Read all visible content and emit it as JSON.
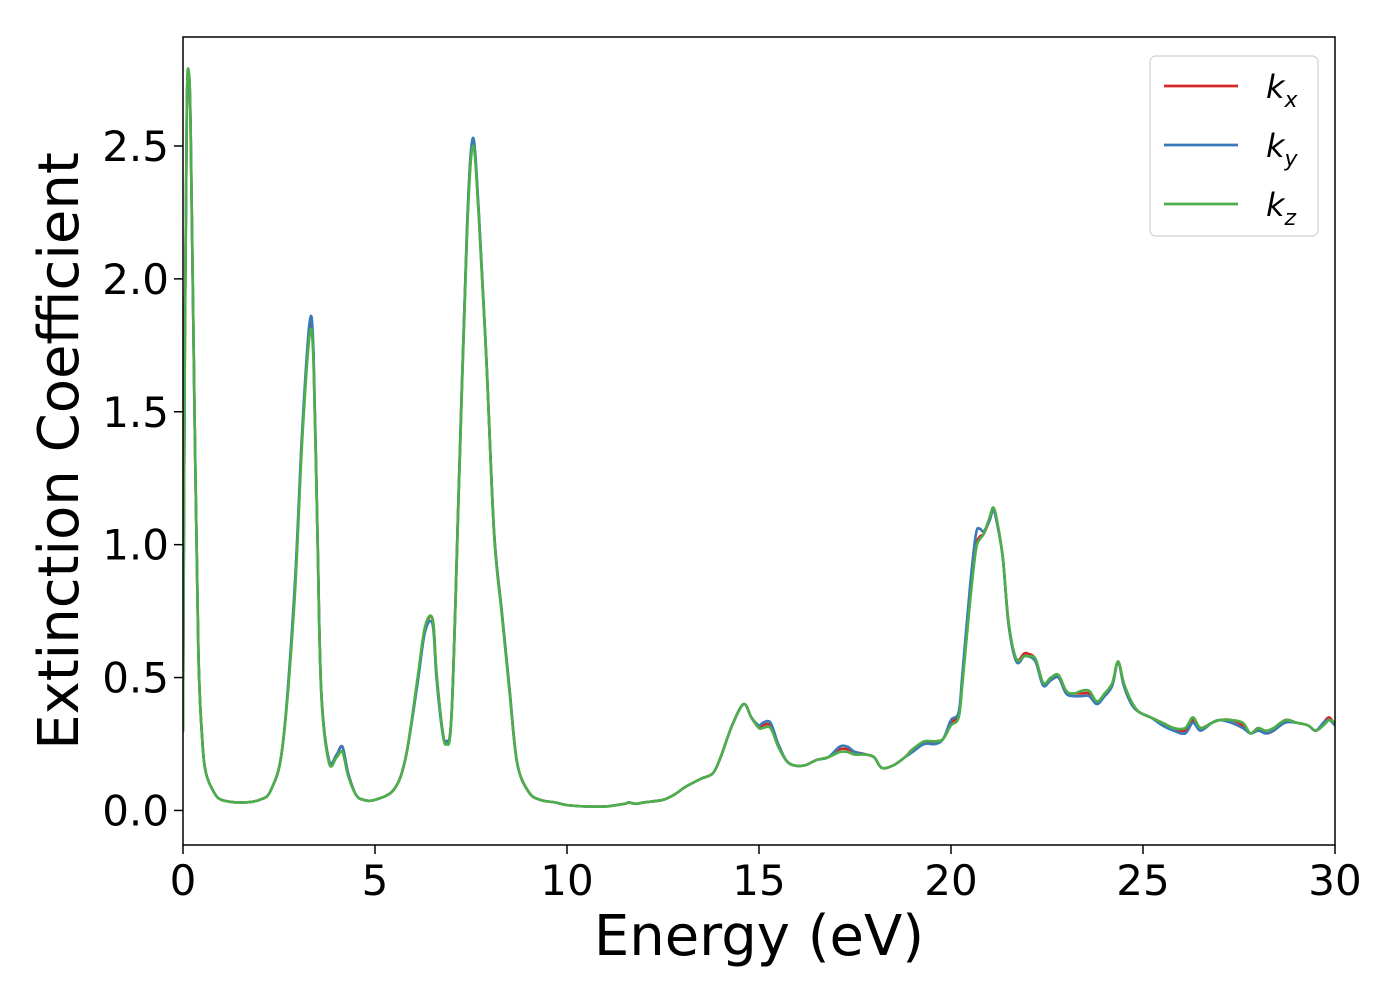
{
  "chart_data": {
    "type": "line",
    "title": "",
    "xlabel": "Energy (eV)",
    "ylabel": "Extinction Coefficient",
    "xlim": [
      0,
      30
    ],
    "ylim": [
      -0.13,
      2.91
    ],
    "xticks": [
      0,
      5,
      10,
      15,
      20,
      25,
      30
    ],
    "xtick_labels": [
      "0",
      "5",
      "10",
      "15",
      "20",
      "25",
      "30"
    ],
    "yticks": [
      0.0,
      0.5,
      1.0,
      1.5,
      2.0,
      2.5
    ],
    "ytick_labels": [
      "0.0",
      "0.5",
      "1.0",
      "1.5",
      "2.0",
      "2.5"
    ],
    "grid": false,
    "legend_position": "top-right",
    "series": [
      {
        "name": "k_x",
        "legend_base": "k",
        "legend_sub": "x",
        "color": "#d62728",
        "x": [
          0,
          0.05,
          0.1,
          0.15,
          0.2,
          0.3,
          0.4,
          0.5,
          0.6,
          0.8,
          1.0,
          1.5,
          2.0,
          2.3,
          2.6,
          2.9,
          3.1,
          3.3,
          3.4,
          3.5,
          3.6,
          3.8,
          4.0,
          4.15,
          4.3,
          4.5,
          4.7,
          5.0,
          5.5,
          5.8,
          6.1,
          6.3,
          6.5,
          6.6,
          6.75,
          6.85,
          7.0,
          7.2,
          7.4,
          7.55,
          7.7,
          7.9,
          8.1,
          8.3,
          8.5,
          8.7,
          9.0,
          9.3,
          9.7,
          10.0,
          10.5,
          11.0,
          11.5,
          11.6,
          11.8,
          12.0,
          12.5,
          12.8,
          13.1,
          13.5,
          13.8,
          14.0,
          14.3,
          14.6,
          14.8,
          15.0,
          15.1,
          15.3,
          15.5,
          15.7,
          15.9,
          16.2,
          16.5,
          16.8,
          17.1,
          17.3,
          17.5,
          17.8,
          18.0,
          18.2,
          18.5,
          18.8,
          19.0,
          19.3,
          19.6,
          19.8,
          20.0,
          20.2,
          20.3,
          20.5,
          20.65,
          20.75,
          20.85,
          21.0,
          21.1,
          21.2,
          21.35,
          21.5,
          21.7,
          21.9,
          22.0,
          22.2,
          22.4,
          22.6,
          22.8,
          23.0,
          23.2,
          23.4,
          23.6,
          23.8,
          24.0,
          24.2,
          24.35,
          24.5,
          24.7,
          24.9,
          25.2,
          25.5,
          25.8,
          26.1,
          26.3,
          26.5,
          26.8,
          27.0,
          27.3,
          27.6,
          27.8,
          28.0,
          28.2,
          28.4,
          28.7,
          29.0,
          29.3,
          29.5,
          29.7,
          29.85,
          30.0
        ],
        "values": [
          0.3,
          1.8,
          2.65,
          2.77,
          2.55,
          1.5,
          0.6,
          0.27,
          0.14,
          0.07,
          0.04,
          0.03,
          0.04,
          0.08,
          0.25,
          0.8,
          1.4,
          1.82,
          1.7,
          1.05,
          0.45,
          0.19,
          0.21,
          0.24,
          0.14,
          0.06,
          0.04,
          0.04,
          0.08,
          0.2,
          0.48,
          0.68,
          0.72,
          0.52,
          0.31,
          0.26,
          0.38,
          1.3,
          2.2,
          2.52,
          2.25,
          1.7,
          1.05,
          0.75,
          0.46,
          0.18,
          0.07,
          0.04,
          0.03,
          0.02,
          0.015,
          0.015,
          0.025,
          0.03,
          0.025,
          0.03,
          0.04,
          0.06,
          0.09,
          0.12,
          0.14,
          0.2,
          0.32,
          0.4,
          0.35,
          0.31,
          0.32,
          0.32,
          0.25,
          0.19,
          0.17,
          0.17,
          0.19,
          0.2,
          0.23,
          0.23,
          0.22,
          0.21,
          0.2,
          0.16,
          0.17,
          0.2,
          0.23,
          0.25,
          0.26,
          0.27,
          0.33,
          0.36,
          0.5,
          0.8,
          0.99,
          1.03,
          1.04,
          1.09,
          1.13,
          1.08,
          0.95,
          0.7,
          0.57,
          0.59,
          0.59,
          0.57,
          0.48,
          0.49,
          0.5,
          0.44,
          0.44,
          0.44,
          0.44,
          0.41,
          0.43,
          0.47,
          0.56,
          0.47,
          0.4,
          0.37,
          0.35,
          0.33,
          0.31,
          0.3,
          0.34,
          0.31,
          0.33,
          0.34,
          0.34,
          0.32,
          0.29,
          0.31,
          0.29,
          0.3,
          0.34,
          0.33,
          0.32,
          0.3,
          0.33,
          0.35,
          0.32
        ]
      },
      {
        "name": "k_y",
        "legend_base": "k",
        "legend_sub": "y",
        "color": "#3a7ab8",
        "x": [
          0,
          0.05,
          0.1,
          0.15,
          0.2,
          0.3,
          0.4,
          0.5,
          0.6,
          0.8,
          1.0,
          1.5,
          2.0,
          2.3,
          2.6,
          2.9,
          3.1,
          3.3,
          3.4,
          3.5,
          3.6,
          3.8,
          4.0,
          4.15,
          4.3,
          4.5,
          4.7,
          5.0,
          5.5,
          5.8,
          6.1,
          6.3,
          6.5,
          6.6,
          6.75,
          6.85,
          7.0,
          7.2,
          7.4,
          7.55,
          7.7,
          7.9,
          8.1,
          8.3,
          8.5,
          8.7,
          9.0,
          9.3,
          9.7,
          10.0,
          10.5,
          11.0,
          11.5,
          11.6,
          11.8,
          12.0,
          12.5,
          12.8,
          13.1,
          13.5,
          13.8,
          14.0,
          14.3,
          14.6,
          14.8,
          15.0,
          15.1,
          15.3,
          15.5,
          15.7,
          15.9,
          16.2,
          16.5,
          16.8,
          17.1,
          17.3,
          17.5,
          17.8,
          18.0,
          18.2,
          18.5,
          18.8,
          19.0,
          19.3,
          19.6,
          19.8,
          20.0,
          20.2,
          20.3,
          20.5,
          20.65,
          20.75,
          20.85,
          21.0,
          21.1,
          21.2,
          21.35,
          21.5,
          21.7,
          21.9,
          22.0,
          22.2,
          22.4,
          22.6,
          22.8,
          23.0,
          23.2,
          23.4,
          23.6,
          23.8,
          24.0,
          24.2,
          24.35,
          24.5,
          24.7,
          24.9,
          25.2,
          25.5,
          25.8,
          26.1,
          26.3,
          26.5,
          26.8,
          27.0,
          27.3,
          27.6,
          27.8,
          28.0,
          28.2,
          28.4,
          28.7,
          29.0,
          29.3,
          29.5,
          29.7,
          29.85,
          30.0
        ],
        "values": [
          0.3,
          1.8,
          2.65,
          2.77,
          2.55,
          1.5,
          0.6,
          0.27,
          0.14,
          0.07,
          0.04,
          0.03,
          0.04,
          0.08,
          0.25,
          0.82,
          1.42,
          1.84,
          1.72,
          1.06,
          0.45,
          0.19,
          0.21,
          0.24,
          0.14,
          0.06,
          0.04,
          0.04,
          0.08,
          0.2,
          0.47,
          0.67,
          0.7,
          0.5,
          0.3,
          0.26,
          0.38,
          1.3,
          2.21,
          2.53,
          2.26,
          1.7,
          1.05,
          0.75,
          0.46,
          0.18,
          0.07,
          0.04,
          0.03,
          0.02,
          0.015,
          0.015,
          0.025,
          0.03,
          0.025,
          0.03,
          0.04,
          0.06,
          0.09,
          0.12,
          0.14,
          0.2,
          0.32,
          0.4,
          0.35,
          0.32,
          0.33,
          0.33,
          0.25,
          0.19,
          0.17,
          0.17,
          0.19,
          0.2,
          0.24,
          0.24,
          0.22,
          0.21,
          0.2,
          0.16,
          0.17,
          0.2,
          0.22,
          0.25,
          0.25,
          0.27,
          0.34,
          0.37,
          0.52,
          0.85,
          1.04,
          1.06,
          1.05,
          1.09,
          1.13,
          1.08,
          0.95,
          0.7,
          0.56,
          0.58,
          0.58,
          0.56,
          0.47,
          0.49,
          0.5,
          0.44,
          0.43,
          0.43,
          0.43,
          0.4,
          0.43,
          0.47,
          0.56,
          0.47,
          0.4,
          0.37,
          0.35,
          0.32,
          0.3,
          0.29,
          0.33,
          0.3,
          0.33,
          0.34,
          0.33,
          0.31,
          0.29,
          0.3,
          0.29,
          0.3,
          0.33,
          0.33,
          0.32,
          0.3,
          0.33,
          0.34,
          0.32
        ]
      },
      {
        "name": "k_z",
        "legend_base": "k",
        "legend_sub": "z",
        "color": "#4daf4a",
        "x": [
          0,
          0.05,
          0.1,
          0.15,
          0.2,
          0.3,
          0.4,
          0.5,
          0.6,
          0.8,
          1.0,
          1.5,
          2.0,
          2.3,
          2.6,
          2.9,
          3.1,
          3.3,
          3.4,
          3.5,
          3.6,
          3.8,
          4.0,
          4.15,
          4.3,
          4.5,
          4.7,
          5.0,
          5.5,
          5.8,
          6.1,
          6.3,
          6.5,
          6.6,
          6.75,
          6.85,
          7.0,
          7.2,
          7.4,
          7.55,
          7.7,
          7.9,
          8.1,
          8.3,
          8.5,
          8.7,
          9.0,
          9.3,
          9.7,
          10.0,
          10.5,
          11.0,
          11.5,
          11.6,
          11.8,
          12.0,
          12.5,
          12.8,
          13.1,
          13.5,
          13.8,
          14.0,
          14.3,
          14.6,
          14.8,
          15.0,
          15.1,
          15.3,
          15.5,
          15.7,
          15.9,
          16.2,
          16.5,
          16.8,
          17.1,
          17.3,
          17.5,
          17.8,
          18.0,
          18.2,
          18.5,
          18.8,
          19.0,
          19.3,
          19.6,
          19.8,
          20.0,
          20.2,
          20.3,
          20.5,
          20.65,
          20.75,
          20.85,
          21.0,
          21.1,
          21.2,
          21.35,
          21.5,
          21.7,
          21.9,
          22.0,
          22.2,
          22.4,
          22.6,
          22.8,
          23.0,
          23.2,
          23.4,
          23.6,
          23.8,
          24.0,
          24.2,
          24.35,
          24.5,
          24.7,
          24.9,
          25.2,
          25.5,
          25.8,
          26.1,
          26.3,
          26.5,
          26.8,
          27.0,
          27.3,
          27.6,
          27.8,
          28.0,
          28.2,
          28.4,
          28.7,
          29.0,
          29.3,
          29.5,
          29.7,
          29.85,
          30.0
        ],
        "values": [
          0.3,
          1.82,
          2.66,
          2.78,
          2.56,
          1.5,
          0.6,
          0.27,
          0.14,
          0.07,
          0.04,
          0.03,
          0.04,
          0.08,
          0.25,
          0.78,
          1.38,
          1.79,
          1.68,
          1.04,
          0.44,
          0.18,
          0.2,
          0.22,
          0.13,
          0.06,
          0.04,
          0.04,
          0.08,
          0.2,
          0.49,
          0.69,
          0.72,
          0.52,
          0.31,
          0.25,
          0.37,
          1.28,
          2.18,
          2.5,
          2.24,
          1.69,
          1.04,
          0.74,
          0.45,
          0.18,
          0.07,
          0.04,
          0.03,
          0.02,
          0.015,
          0.015,
          0.025,
          0.03,
          0.025,
          0.03,
          0.04,
          0.06,
          0.09,
          0.12,
          0.14,
          0.2,
          0.32,
          0.4,
          0.35,
          0.31,
          0.31,
          0.31,
          0.24,
          0.19,
          0.17,
          0.17,
          0.19,
          0.2,
          0.22,
          0.22,
          0.21,
          0.21,
          0.2,
          0.16,
          0.17,
          0.2,
          0.23,
          0.26,
          0.26,
          0.27,
          0.32,
          0.35,
          0.48,
          0.79,
          0.98,
          1.02,
          1.04,
          1.1,
          1.14,
          1.09,
          0.95,
          0.71,
          0.57,
          0.58,
          0.58,
          0.57,
          0.48,
          0.5,
          0.51,
          0.45,
          0.44,
          0.45,
          0.45,
          0.41,
          0.44,
          0.48,
          0.56,
          0.48,
          0.41,
          0.37,
          0.35,
          0.33,
          0.31,
          0.31,
          0.35,
          0.31,
          0.33,
          0.34,
          0.34,
          0.33,
          0.29,
          0.31,
          0.3,
          0.31,
          0.34,
          0.33,
          0.32,
          0.3,
          0.32,
          0.34,
          0.33
        ]
      }
    ]
  }
}
